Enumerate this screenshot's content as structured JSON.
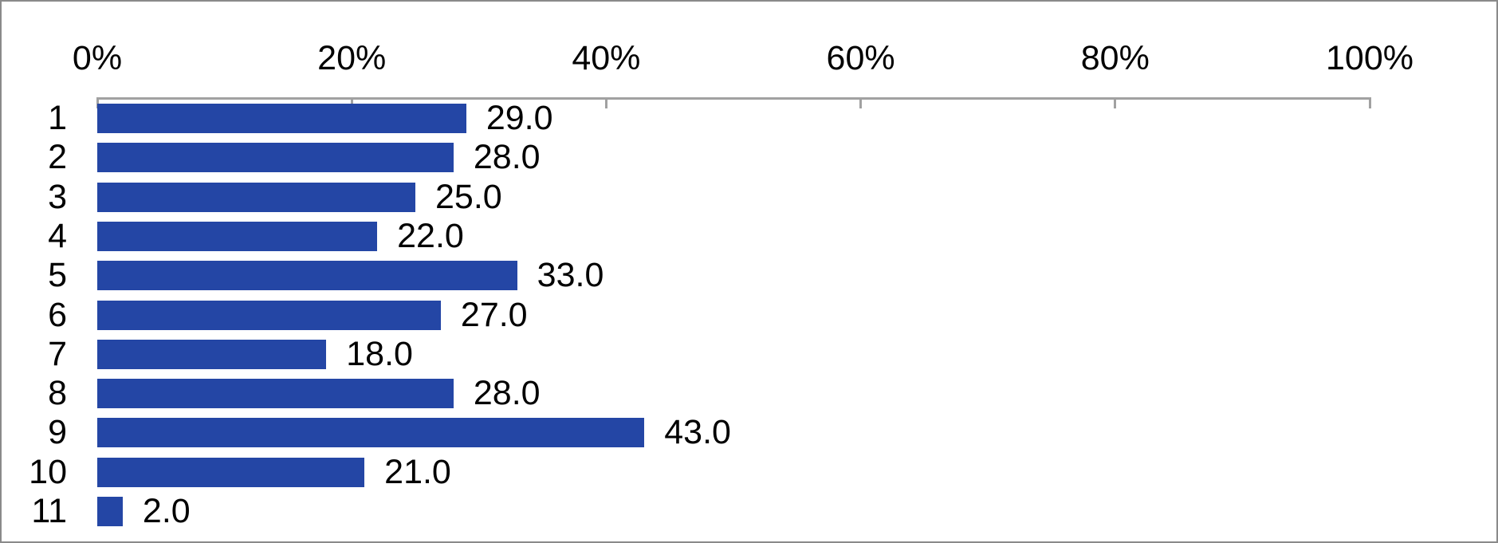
{
  "chart_data": {
    "type": "bar",
    "orientation": "horizontal",
    "title": "",
    "xlabel": "",
    "ylabel": "",
    "grid": false,
    "legend": null,
    "categories": [
      "1",
      "2",
      "3",
      "4",
      "5",
      "6",
      "7",
      "8",
      "9",
      "10",
      "11"
    ],
    "values": [
      29,
      28,
      25,
      22,
      33,
      27,
      18,
      28,
      43,
      21,
      2
    ],
    "data_labels": [
      "29.0",
      "28.0",
      "25.0",
      "22.0",
      "33.0",
      "27.0",
      "18.0",
      "28.0",
      "43.0",
      "21.0",
      "2.0"
    ],
    "x_axis": {
      "position": "top",
      "min": 0,
      "max": 100,
      "tick_labels": [
        "0%",
        "20%",
        "40%",
        "60%",
        "80%",
        "100%"
      ],
      "tick_values": [
        0,
        20,
        40,
        60,
        80,
        100
      ]
    },
    "colors": {
      "bar": "#2446a5",
      "axis": "#a1a1a1",
      "text": "#000000",
      "background": "#ffffff",
      "frame_border": "#8a8a8a"
    }
  }
}
